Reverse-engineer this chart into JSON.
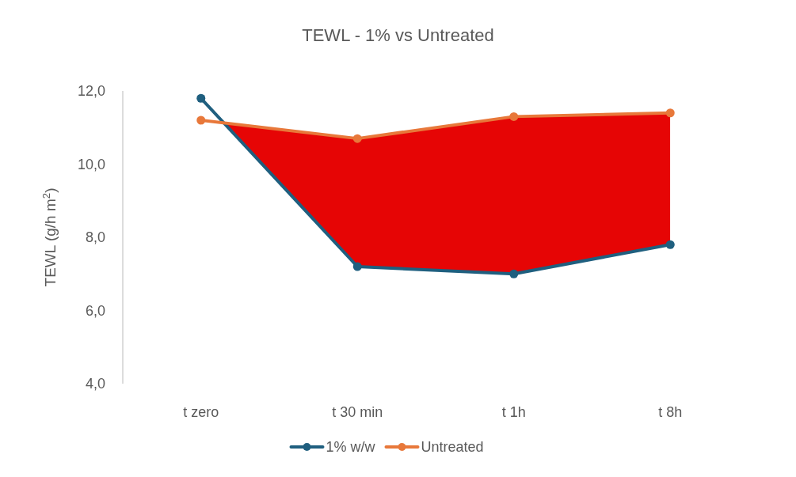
{
  "chart_data": {
    "type": "line",
    "title": "TEWL - 1% vs Untreated",
    "ylabel": "TEWL (g/h m$^{2}$)",
    "categories": [
      "t zero",
      "t 30 min",
      "t 1h",
      "t 8h"
    ],
    "series": [
      {
        "name": "1% w/w",
        "color": "#1f5f7f",
        "values": [
          11.8,
          7.2,
          7.0,
          7.8
        ]
      },
      {
        "name": "Untreated",
        "color": "#e8783a",
        "values": [
          11.2,
          10.7,
          11.3,
          11.4
        ],
        "lower": [
          11.8,
          7.2,
          7.0,
          7.8
        ],
        "upper": [
          11.2,
          10.7,
          11.3,
          11.4
        ]
      }
    ],
    "ylim": [
      4,
      12
    ],
    "yticks": [
      {
        "value": 4,
        "label": "4,0"
      },
      {
        "value": 6,
        "label": "6,0"
      },
      {
        "value": 8,
        "label": "8,0"
      },
      {
        "value": 10,
        "label": "10,0"
      },
      {
        "value": 12,
        "label": "12,0"
      }
    ],
    "grid": false,
    "legend": "bottom",
    "marker": "circle",
    "line_style": "solid"
  }
}
